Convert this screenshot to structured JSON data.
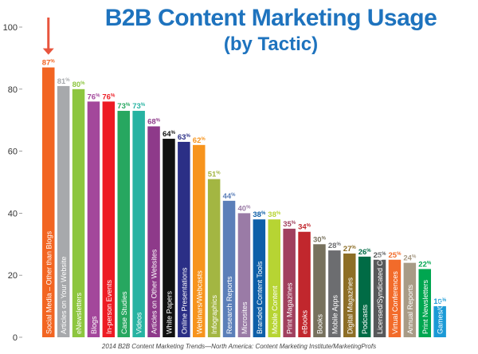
{
  "title_line1": "B2B Content Marketing Usage",
  "title_line2": "(by Tactic)",
  "source": "2014 B2B Content Marketing Trends—North America: Content Marketing Institute/MarketingProfs",
  "percent_suffix": "%",
  "arrow_color": "#e8553e",
  "chart_data": {
    "type": "bar",
    "ylim": [
      0,
      100
    ],
    "yticks": [
      0,
      20,
      40,
      60,
      80,
      100
    ],
    "grid": false,
    "categories": [
      "Social Media – Other than Blogs",
      "Articles on Your Website",
      "eNewsletters",
      "Blogs",
      "In-person Events",
      "Case Studies",
      "Videos",
      "Articles on Other Websites",
      "White Papers",
      "Online Presentations",
      "Webinars/Webcasts",
      "Infographics",
      "Research Reports",
      "Microsites",
      "Branded Content Tools",
      "Mobile Content",
      "Print Magazines",
      "eBooks",
      "Books",
      "Mobile Apps",
      "Digital Magazines",
      "Podcasts",
      "Licensed/Syndicated Content",
      "Virtual Conferences",
      "Annual Reports",
      "Print Newsletters",
      "Games/Gamification"
    ],
    "values": [
      87,
      81,
      80,
      76,
      76,
      73,
      73,
      68,
      64,
      63,
      62,
      51,
      44,
      40,
      38,
      38,
      35,
      34,
      30,
      28,
      27,
      26,
      25,
      25,
      24,
      22,
      10
    ],
    "colors": [
      "#f26522",
      "#a7a9ac",
      "#8dc63f",
      "#a3479b",
      "#ed1c24",
      "#27a760",
      "#27b3a2",
      "#8e3a8a",
      "#111111",
      "#2b2f86",
      "#f7941d",
      "#a3b642",
      "#5b7fb9",
      "#9a7ba6",
      "#0d5fa8",
      "#b7d433",
      "#a0405e",
      "#c1272d",
      "#77715d",
      "#6c6d70",
      "#8d6e26",
      "#006b45",
      "#58595b",
      "#f26b2a",
      "#a89b86",
      "#00a650",
      "#1b9ad6"
    ]
  }
}
